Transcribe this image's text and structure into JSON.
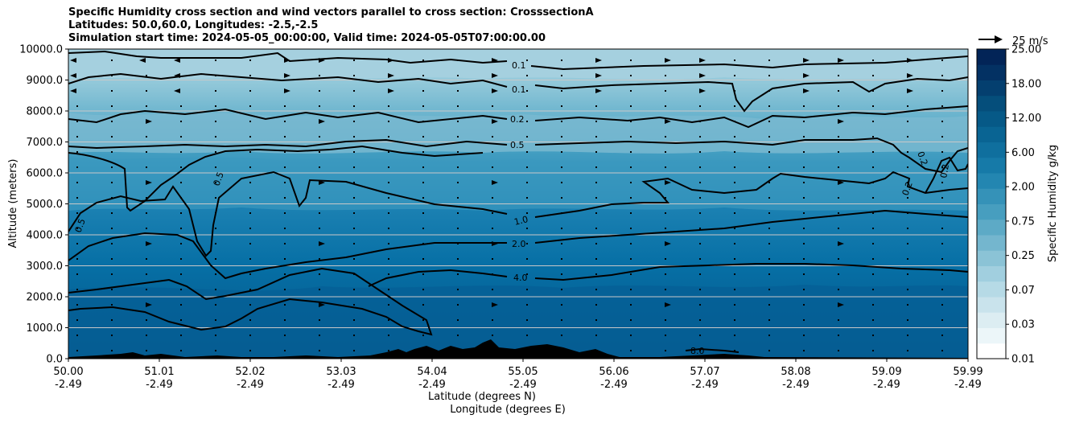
{
  "chart_data": {
    "type": "heatmap",
    "title_lines": [
      "Specific Humidity cross section and wind vectors parallel to cross section: CrosssectionA",
      "Latitudes: 50.0,60.0, Longitudes: -2.5,-2.5",
      "Simulation start time: 2024-05-05_00:00:00, Valid time: 2024-05-05T07:00:00.00"
    ],
    "ylabel": "Altitude (meters)",
    "xlabel_lines": [
      "Latitude (degrees N)",
      "Longitude (degrees E)"
    ],
    "ylim": [
      0,
      10000
    ],
    "y_ticks": [
      "0.0",
      "1000.0",
      "2000.0",
      "3000.0",
      "4000.0",
      "5000.0",
      "6000.0",
      "7000.0",
      "8000.0",
      "9000.0",
      "10000.0"
    ],
    "x_ticks_lat": [
      "50.00",
      "51.01",
      "52.02",
      "53.03",
      "54.04",
      "55.05",
      "56.06",
      "57.07",
      "58.08",
      "59.09",
      "59.99"
    ],
    "x_ticks_lon": [
      "-2.49",
      "-2.49",
      "-2.49",
      "-2.49",
      "-2.49",
      "-2.49",
      "-2.49",
      "-2.49",
      "-2.49",
      "-2.49",
      "-2.49"
    ],
    "grid": "horizontal",
    "colorbar": {
      "label": "Specific Humidity g/kg",
      "levels": [
        "0.01",
        "0.03",
        "0.07",
        "0.25",
        "0.75",
        "2.00",
        "6.00",
        "12.00",
        "18.00",
        "25.00"
      ],
      "colormap": "PuBu"
    },
    "contour_labels": [
      "0.1",
      "0.1",
      "0.2",
      "0.5",
      "0.5",
      "0.5",
      "1.0",
      "2.0",
      "4.0",
      "0.2",
      "0.2",
      "0.2",
      "8.0"
    ],
    "quiver_key": "25 m/s"
  }
}
